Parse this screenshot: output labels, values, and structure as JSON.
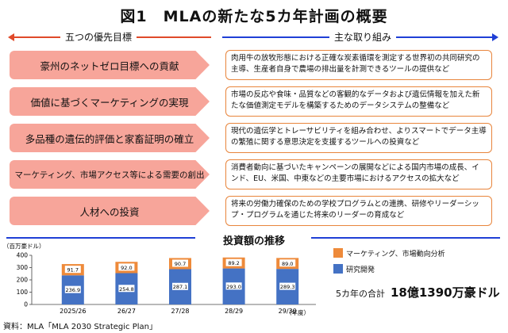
{
  "title": "図1　MLAの新たな5カ年計画の概要",
  "header": {
    "left_label": "五つの優先目標",
    "right_label": "主な取り組み"
  },
  "colors": {
    "goal_fill": "#f7a59a",
    "effort_border": "#e8853c",
    "left_arrow": "#e04a2a",
    "right_arrow": "#1f3fd6",
    "marketing": "#ee8a3a",
    "research": "#4472c4"
  },
  "goals": [
    {
      "goal": "豪州のネットゼロ目標への貢献",
      "effort": "肉用牛の放牧形態における正確な炭素循環を測定する世界初の共同研究の主導、生産者自身で農場の排出量を計測できるツールの提供など"
    },
    {
      "goal": "価値に基づくマーケティングの実現",
      "effort": "市場の反応や食味・品質などの客観的なデータおよび遺伝情報を加えた新たな価値測定モデルを構築するためのデータシステムの整備など"
    },
    {
      "goal": "多品種の遺伝的評価と家畜証明の確立",
      "effort": "現代の遺伝学とトレーサビリティを組み合わせ、よりスマートでデータ主導の繁殖に関する意思決定を支援するツールへの投資など"
    },
    {
      "goal": "マーケティング、市場アクセス等による需要の創出",
      "effort": "消費者動向に基づいたキャンペーンの展開などによる国内市場の成長、インド、EU、米国、中東などの主要市場におけるアクセスの拡大など"
    },
    {
      "goal": "人材への投資",
      "effort": "将来の労働力確保のための学校プログラムとの連携、研修やリーダーシップ・プログラムを通じた将来のリーダーの育成など"
    }
  ],
  "investment": {
    "section_title": "投資額の推移",
    "total_label": "5カ年の合計",
    "total_value": "18億1390万豪ドル"
  },
  "source": "資料：MLA「MLA 2030 Strategic Plan」",
  "chart_data": {
    "type": "bar",
    "stacked": true,
    "ylabel": "（百万豪ドル）",
    "xlabel": "（年度）",
    "ylim": [
      0,
      400
    ],
    "yticks": [
      0,
      100,
      200,
      300,
      400
    ],
    "categories": [
      "2025/26",
      "26/27",
      "27/28",
      "28/29",
      "29/30"
    ],
    "series": [
      {
        "name": "研究開発",
        "values": [
          236.9,
          254.8,
          287.1,
          293.0,
          289.3
        ],
        "color": "#4472c4"
      },
      {
        "name": "マーケティング、市場動向分析",
        "values": [
          91.7,
          92.0,
          90.7,
          89.2,
          89.0
        ],
        "color": "#ee8a3a"
      }
    ],
    "legend": {
      "position": "right",
      "order": [
        "マーケティング、市場動向分析",
        "研究開発"
      ]
    },
    "grid": false
  }
}
